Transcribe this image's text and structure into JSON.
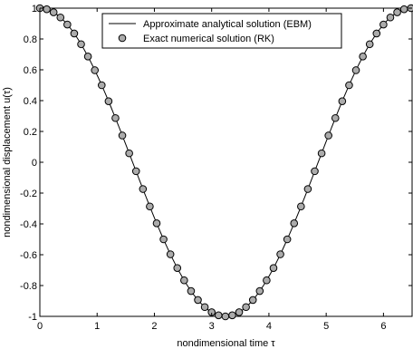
{
  "chart_data": {
    "type": "line",
    "xlabel": "nondimensional time τ",
    "ylabel": "nondimensional displacement u(τ)",
    "xlim": [
      0,
      6.5
    ],
    "ylim": [
      -1,
      1
    ],
    "xticks": [
      0,
      1,
      2,
      3,
      4,
      5,
      6
    ],
    "yticks": [
      -1,
      -0.8,
      -0.6,
      -0.4,
      -0.2,
      0,
      0.2,
      0.4,
      0.6,
      0.8,
      1
    ],
    "xtick_labels": [
      "0",
      "1",
      "2",
      "3",
      "4",
      "5",
      "6"
    ],
    "ytick_labels": [
      "-1",
      "-0.8",
      "-0.6",
      "-0.4",
      "-0.2",
      "0",
      "0.2",
      "0.4",
      "0.6",
      "0.8",
      "1"
    ],
    "grid": false,
    "legend_position": "top-right",
    "period": 6.48,
    "series": [
      {
        "name": "Approximate analytical solution (EBM)",
        "style": "solid-line",
        "color": "#000000"
      },
      {
        "name": "Exact numerical solution (RK)",
        "style": "circle-markers",
        "color": "#000000",
        "marker_fill": "#ababab",
        "marker_spacing": 0.12
      }
    ]
  }
}
